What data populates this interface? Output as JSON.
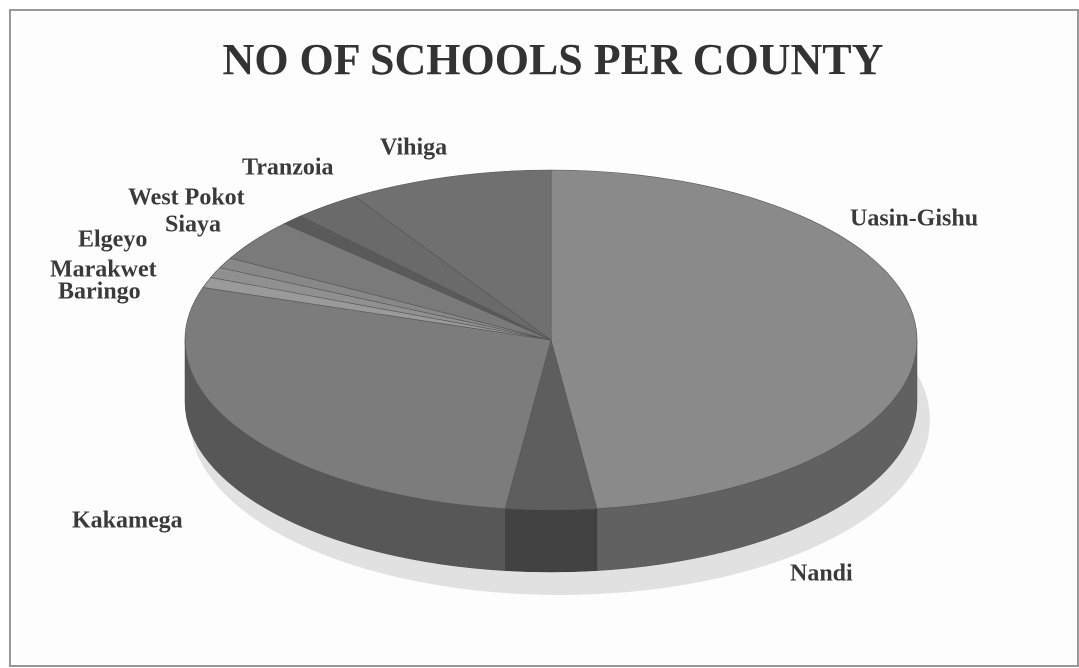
{
  "chart_data": {
    "type": "pie",
    "title": "NO OF SCHOOLS PER COUNTY",
    "categories": [
      "Uasin-Gishu",
      "Nandi",
      "Kakamega",
      "Baringo",
      "Marakwet",
      "Elgeyo",
      "Siaya",
      "West Pokot",
      "Tranzoia",
      "Vihiga"
    ],
    "values": [
      48,
      4,
      28,
      1,
      1,
      1,
      4,
      1,
      3,
      9
    ],
    "colors": [
      "#8a8a8a",
      "#5e5e5e",
      "#7c7c7c",
      "#9a9a9a",
      "#909090",
      "#888888",
      "#7a7a7a",
      "#5a5a5a",
      "#6a6a6a",
      "#707070"
    ]
  }
}
